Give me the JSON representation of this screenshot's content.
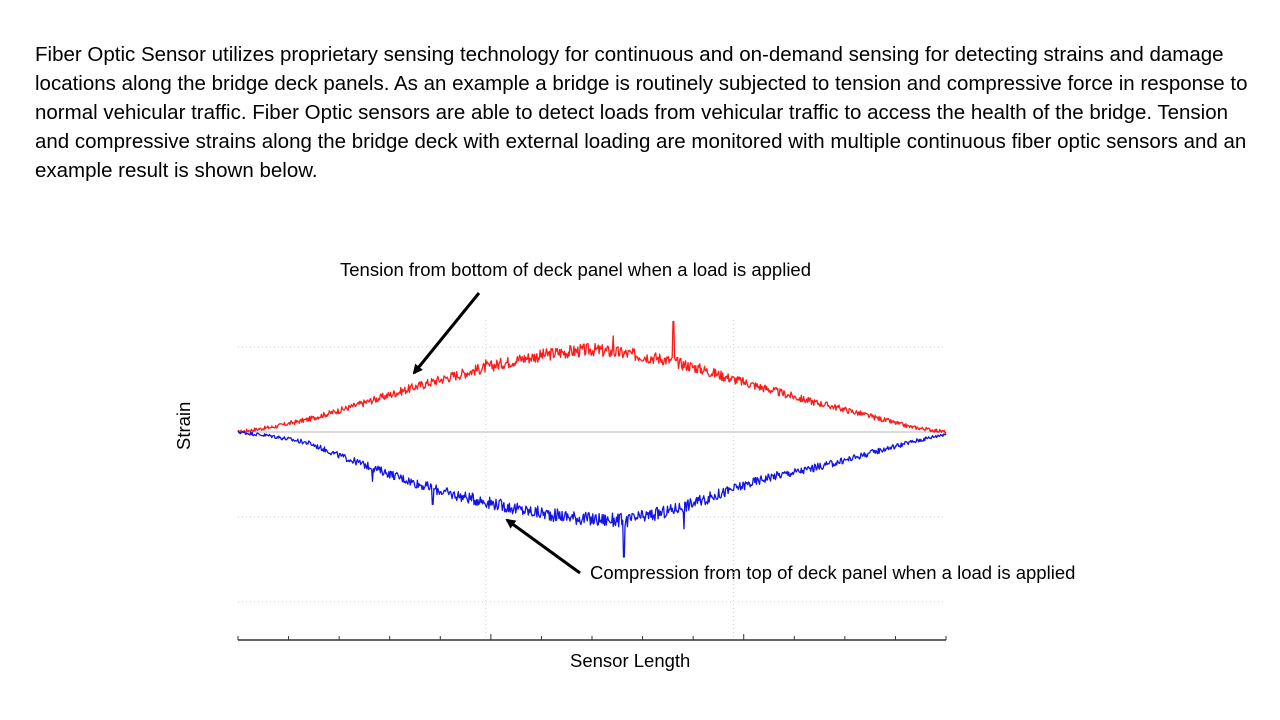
{
  "intro_text": "Fiber Optic Sensor utilizes proprietary sensing technology for continuous and  on-demand sensing for detecting strains and damage  locations along the bridge deck panels.  As an example a bridge is routinely subjected to tension and compressive force in response to normal vehicular traffic. Fiber Optic sensors are able to detect loads from vehicular traffic to access the health of the bridge. Tension and compressive strains along the bridge deck with external loading are monitored with multiple continuous fiber optic sensors and an example result is shown below.",
  "chart_data": {
    "type": "line",
    "title": "",
    "xlabel": "Sensor Length",
    "ylabel": "Strain",
    "xlim": [
      0,
      1
    ],
    "ylim": [
      -2.5,
      1.3
    ],
    "grid": true,
    "annotations": [
      "Tension from bottom of deck panel when a load is applied",
      "Compression  from top of deck panel when a load is applied"
    ],
    "x": [
      0.0,
      0.05,
      0.1,
      0.15,
      0.2,
      0.25,
      0.3,
      0.35,
      0.4,
      0.45,
      0.5,
      0.55,
      0.6,
      0.65,
      0.7,
      0.75,
      0.8,
      0.85,
      0.9,
      0.95,
      1.0
    ],
    "series": [
      {
        "color": "#ff1a1a",
        "values": [
          0.0,
          0.06,
          0.15,
          0.27,
          0.4,
          0.53,
          0.65,
          0.76,
          0.86,
          0.93,
          0.97,
          0.92,
          0.86,
          0.75,
          0.62,
          0.5,
          0.38,
          0.28,
          0.17,
          0.06,
          0.0
        ]
      },
      {
        "color": "#1414e6",
        "values": [
          0.0,
          -0.05,
          -0.13,
          -0.3,
          -0.45,
          -0.6,
          -0.73,
          -0.82,
          -0.92,
          -0.98,
          -1.03,
          -1.04,
          -0.95,
          -0.82,
          -0.67,
          -0.53,
          -0.45,
          -0.35,
          -0.23,
          -0.12,
          -0.02
        ]
      }
    ],
    "spikes": [
      {
        "series": 0,
        "x": 0.35,
        "value": 0.85
      },
      {
        "series": 0,
        "x": 0.53,
        "value": 1.13
      },
      {
        "series": 0,
        "x": 0.615,
        "value": 1.3
      },
      {
        "series": 1,
        "x": 0.19,
        "value": -0.58
      },
      {
        "series": 1,
        "x": 0.275,
        "value": -0.85
      },
      {
        "series": 1,
        "x": 0.545,
        "value": -1.47
      },
      {
        "series": 1,
        "x": 0.63,
        "value": -1.14
      }
    ]
  },
  "icons": {
    "arrow_top": "arrow-icon",
    "arrow_bottom": "arrow-icon"
  }
}
